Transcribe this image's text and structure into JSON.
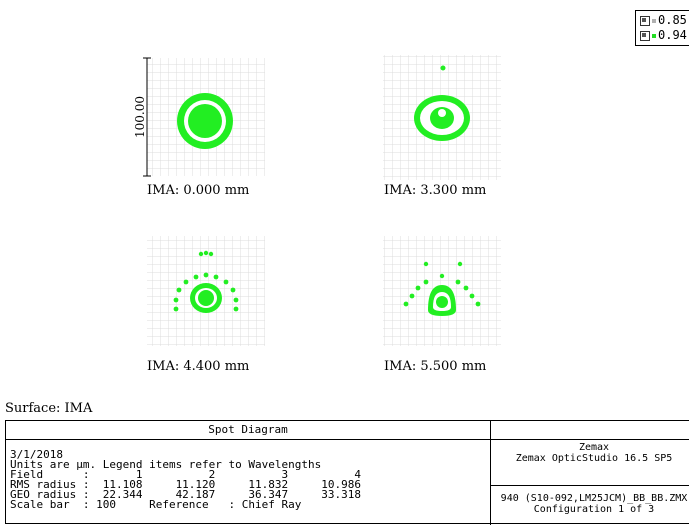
{
  "legend": [
    {
      "label": "0.85",
      "color": "#b0b0b0",
      "icon": "checkbox-icon"
    },
    {
      "label": "0.94",
      "color": "#22dd22",
      "icon": "checkbox-icon"
    }
  ],
  "scale_bar_label": "100.00",
  "plots": [
    {
      "caption": "IMA: 0.000 mm",
      "field": 1
    },
    {
      "caption": "IMA: 3.300 mm",
      "field": 2
    },
    {
      "caption": "IMA: 4.400 mm",
      "field": 3
    },
    {
      "caption": "IMA: 5.500 mm",
      "field": 4
    }
  ],
  "surface_label": "Surface: IMA",
  "table": {
    "title": "Spot Diagram",
    "date": "3/1/2018",
    "units_line": "Units are μm. Legend items refer to Wavelengths",
    "field_line": "Field      :       1          2          3          4",
    "rms_line": "RMS radius :  11.108     11.120     11.832     10.986",
    "geo_line": "GEO radius :  22.344     42.187     36.347     33.318",
    "scale_line": "Scale bar  : 100     Reference   : Chief Ray",
    "vendor_line1": "Zemax",
    "vendor_line2": "Zemax OpticStudio 16.5 SP5",
    "lens_line1": "940 (S10-092,LM25JCM)_BB_BB.ZMX",
    "lens_line2": "Configuration 1 of 3"
  },
  "colors": {
    "spot": "#22ee22",
    "grid": "#dcdcdc",
    "secondary": "#b8b8b8"
  }
}
